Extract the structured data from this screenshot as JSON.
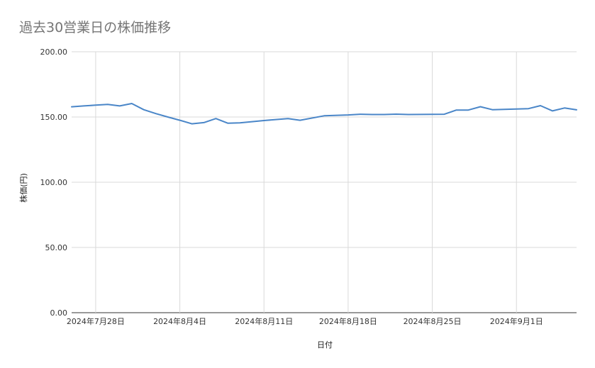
{
  "chart_data": {
    "type": "line",
    "title": "過去30営業日の株価推移",
    "xlabel": "日付",
    "ylabel": "株価(円)",
    "ylim": [
      0,
      200
    ],
    "yticks": [
      "0.00",
      "50.00",
      "100.00",
      "150.00",
      "200.00"
    ],
    "xticks": [
      {
        "date": "2024-07-28",
        "label": "2024年7月28日"
      },
      {
        "date": "2024-08-04",
        "label": "2024年8月4日"
      },
      {
        "date": "2024-08-11",
        "label": "2024年8月11日"
      },
      {
        "date": "2024-08-18",
        "label": "2024年8月18日"
      },
      {
        "date": "2024-08-25",
        "label": "2024年8月25日"
      },
      {
        "date": "2024-09-01",
        "label": "2024年9月1日"
      }
    ],
    "xlim": [
      "2024-07-26",
      "2024-09-06"
    ],
    "grid": true,
    "line_color": "#4a86c8",
    "series": [
      {
        "points": [
          {
            "x": "2024-07-26",
            "y": 157.8
          },
          {
            "x": "2024-07-27",
            "y": 158.5
          },
          {
            "x": "2024-07-28",
            "y": 159.1
          },
          {
            "x": "2024-07-29",
            "y": 159.7
          },
          {
            "x": "2024-07-30",
            "y": 158.5
          },
          {
            "x": "2024-07-31",
            "y": 160.3
          },
          {
            "x": "2024-08-01",
            "y": 155.6
          },
          {
            "x": "2024-08-02",
            "y": 152.6
          },
          {
            "x": "2024-08-03",
            "y": 150.0
          },
          {
            "x": "2024-08-04",
            "y": 147.5
          },
          {
            "x": "2024-08-05",
            "y": 144.8
          },
          {
            "x": "2024-08-06",
            "y": 145.7
          },
          {
            "x": "2024-08-07",
            "y": 148.8
          },
          {
            "x": "2024-08-08",
            "y": 145.2
          },
          {
            "x": "2024-08-09",
            "y": 145.5
          },
          {
            "x": "2024-08-11",
            "y": 147.3
          },
          {
            "x": "2024-08-13",
            "y": 148.8
          },
          {
            "x": "2024-08-14",
            "y": 147.5
          },
          {
            "x": "2024-08-16",
            "y": 150.9
          },
          {
            "x": "2024-08-18",
            "y": 151.6
          },
          {
            "x": "2024-08-19",
            "y": 152.1
          },
          {
            "x": "2024-08-20",
            "y": 151.9
          },
          {
            "x": "2024-08-21",
            "y": 151.9
          },
          {
            "x": "2024-08-22",
            "y": 152.2
          },
          {
            "x": "2024-08-23",
            "y": 151.9
          },
          {
            "x": "2024-08-25",
            "y": 152.0
          },
          {
            "x": "2024-08-26",
            "y": 152.1
          },
          {
            "x": "2024-08-27",
            "y": 155.3
          },
          {
            "x": "2024-08-28",
            "y": 155.3
          },
          {
            "x": "2024-08-29",
            "y": 157.9
          },
          {
            "x": "2024-08-30",
            "y": 155.6
          },
          {
            "x": "2024-09-01",
            "y": 156.1
          },
          {
            "x": "2024-09-02",
            "y": 156.4
          },
          {
            "x": "2024-09-03",
            "y": 158.7
          },
          {
            "x": "2024-09-04",
            "y": 154.7
          },
          {
            "x": "2024-09-05",
            "y": 156.9
          },
          {
            "x": "2024-09-06",
            "y": 155.5
          }
        ]
      }
    ]
  }
}
